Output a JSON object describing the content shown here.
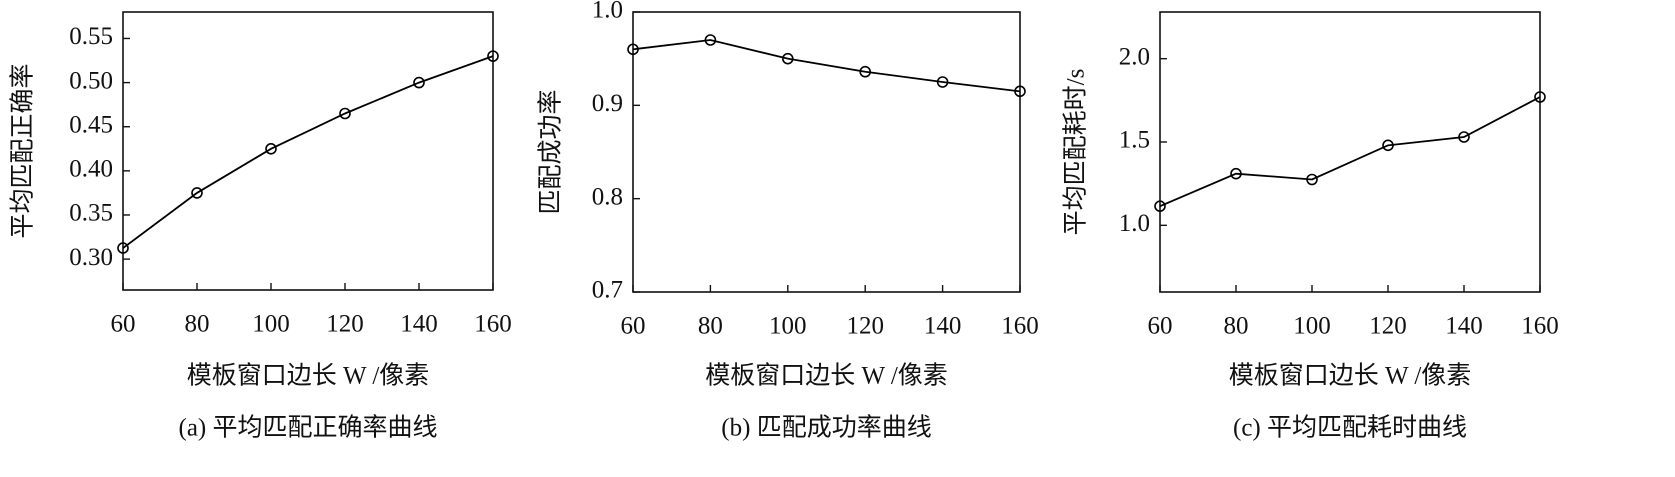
{
  "chart_data": [
    {
      "type": "line",
      "ylabel": "平均匹配正确率",
      "xlabel": "模板窗口边长 W /像素",
      "caption": "(a) 平均匹配正确率曲线",
      "x": [
        60,
        80,
        100,
        120,
        140,
        160
      ],
      "values": [
        0.3125,
        0.375,
        0.425,
        0.465,
        0.5,
        0.53
      ],
      "color": "#000000",
      "marker": "circle",
      "xlim": [
        60,
        160
      ],
      "xticks": [
        60,
        80,
        100,
        120,
        140,
        160
      ],
      "ylim": [
        0.265,
        0.58
      ],
      "yticks": [
        {
          "value": 0.3,
          "label": "0.30"
        },
        0.35,
        {
          "value": 0.4,
          "label": "0.40"
        },
        0.45,
        {
          "value": 0.5,
          "label": "0.50"
        },
        0.55
      ]
    },
    {
      "type": "line",
      "ylabel": "匹配成功率",
      "xlabel": "模板窗口边长 W /像素",
      "caption": "(b) 匹配成功率曲线",
      "x": [
        60,
        80,
        100,
        120,
        140,
        160
      ],
      "values": [
        0.96,
        0.97,
        0.95,
        0.936,
        0.925,
        0.915
      ],
      "color": "#000000",
      "marker": "circle",
      "xlim": [
        60,
        160
      ],
      "xticks": [
        60,
        80,
        100,
        120,
        140,
        160
      ],
      "ylim": [
        0.7,
        1.0
      ],
      "yticks": [
        0.7,
        0.8,
        0.9,
        {
          "value": 1.0,
          "label": "1.0"
        }
      ]
    },
    {
      "type": "line",
      "ylabel": "平均匹配耗时/s",
      "xlabel": "模板窗口边长 W /像素",
      "caption": "(c) 平均匹配耗时曲线",
      "x": [
        60,
        80,
        100,
        120,
        140,
        160
      ],
      "values": [
        1.115,
        1.31,
        1.275,
        1.48,
        1.53,
        1.77
      ],
      "color": "#000000",
      "marker": "circle",
      "xlim": [
        60,
        160
      ],
      "xticks": [
        60,
        80,
        100,
        120,
        140,
        160
      ],
      "ylim": [
        0.6,
        2.28
      ],
      "yticks": [
        {
          "value": 1.0,
          "label": "1.0"
        },
        1.5,
        {
          "value": 2.0,
          "label": "2.0"
        }
      ]
    }
  ]
}
